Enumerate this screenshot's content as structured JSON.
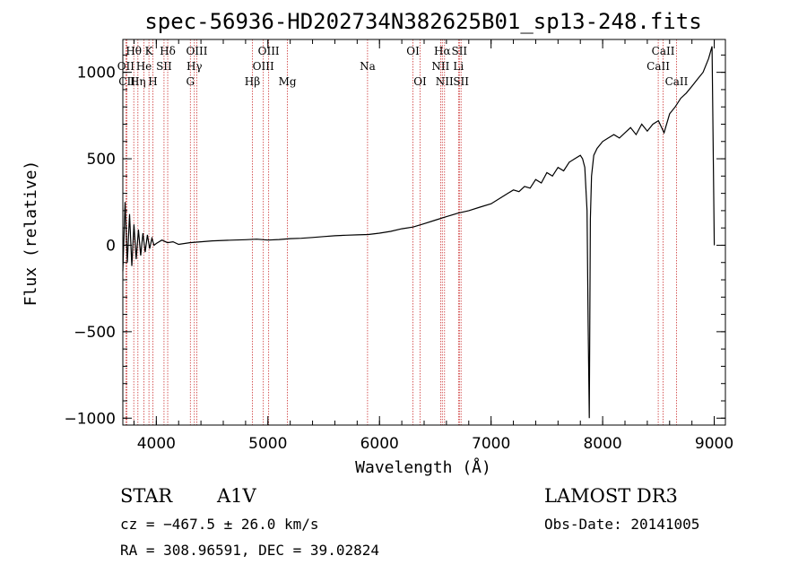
{
  "chart_data": {
    "type": "line",
    "title": "spec-56936-HD202734N382625B01_sp13-248.fits",
    "xlabel": "Wavelength (Å)",
    "ylabel": "Flux (relative)",
    "xlim": [
      3700,
      9100
    ],
    "ylim": [
      -1040,
      1190
    ],
    "xticks": [
      4000,
      5000,
      6000,
      7000,
      8000,
      9000
    ],
    "yticks": [
      -1000,
      -500,
      0,
      500,
      1000
    ],
    "xtick_labels": [
      "4000",
      "5000",
      "6000",
      "7000",
      "8000",
      "9000"
    ],
    "ytick_labels": [
      "−1000",
      "−500",
      "0",
      "500",
      "1000"
    ],
    "series": [
      {
        "name": "spectrum",
        "x": [
          3700,
          3720,
          3740,
          3760,
          3780,
          3800,
          3820,
          3840,
          3860,
          3880,
          3900,
          3920,
          3940,
          3960,
          3980,
          4000,
          4050,
          4100,
          4150,
          4200,
          4300,
          4400,
          4500,
          4600,
          4700,
          4800,
          4900,
          5000,
          5100,
          5200,
          5300,
          5400,
          5500,
          5600,
          5700,
          5800,
          5900,
          6000,
          6100,
          6200,
          6300,
          6400,
          6500,
          6600,
          6700,
          6800,
          6900,
          7000,
          7100,
          7150,
          7200,
          7250,
          7300,
          7350,
          7400,
          7450,
          7500,
          7550,
          7600,
          7650,
          7700,
          7750,
          7800,
          7820,
          7840,
          7860,
          7870,
          7880,
          7890,
          7900,
          7920,
          7950,
          8000,
          8050,
          8100,
          8150,
          8200,
          8250,
          8300,
          8350,
          8400,
          8450,
          8500,
          8550,
          8600,
          8650,
          8700,
          8750,
          8800,
          8850,
          8900,
          8950,
          8980,
          9000
        ],
        "y": [
          -150,
          250,
          -100,
          180,
          -120,
          120,
          -80,
          90,
          -60,
          70,
          -40,
          60,
          -20,
          40,
          0,
          10,
          30,
          15,
          20,
          5,
          15,
          20,
          25,
          28,
          30,
          32,
          35,
          30,
          33,
          38,
          40,
          45,
          50,
          55,
          58,
          60,
          62,
          70,
          80,
          95,
          105,
          125,
          145,
          165,
          185,
          200,
          220,
          240,
          280,
          300,
          320,
          310,
          340,
          330,
          380,
          360,
          420,
          400,
          450,
          430,
          480,
          500,
          520,
          500,
          450,
          200,
          -450,
          -1000,
          150,
          400,
          520,
          560,
          600,
          620,
          640,
          620,
          650,
          680,
          640,
          700,
          660,
          700,
          720,
          650,
          760,
          800,
          850,
          880,
          920,
          960,
          1000,
          1080,
          1150,
          0
        ]
      }
    ],
    "lines": [
      {
        "name": "Hθ",
        "x": 3798,
        "row": 0
      },
      {
        "name": "OII",
        "x": 3727,
        "row": 1
      },
      {
        "name": "CII",
        "x": 3737,
        "row": 2
      },
      {
        "name": "K",
        "x": 3934,
        "row": 0
      },
      {
        "name": "He",
        "x": 3889,
        "row": 1
      },
      {
        "name": "Hη",
        "x": 3835,
        "row": 2
      },
      {
        "name": "SII",
        "x": 4069,
        "row": 1
      },
      {
        "name": "H",
        "x": 3969,
        "row": 2
      },
      {
        "name": "Hδ",
        "x": 4102,
        "row": 0
      },
      {
        "name": "OIII",
        "x": 4363,
        "row": 0
      },
      {
        "name": "Hγ",
        "x": 4341,
        "row": 1
      },
      {
        "name": "G",
        "x": 4305,
        "row": 2
      },
      {
        "name": "OIII",
        "x": 5007,
        "row": 0
      },
      {
        "name": "OIII",
        "x": 4959,
        "row": 1
      },
      {
        "name": "Hβ",
        "x": 4861,
        "row": 2
      },
      {
        "name": "Mg",
        "x": 5175,
        "row": 2
      },
      {
        "name": "Na",
        "x": 5893,
        "row": 1
      },
      {
        "name": "OI",
        "x": 6300,
        "row": 0
      },
      {
        "name": "OI",
        "x": 6364,
        "row": 2
      },
      {
        "name": "Hα",
        "x": 6563,
        "row": 0
      },
      {
        "name": "NII",
        "x": 6548,
        "row": 1
      },
      {
        "name": "NII",
        "x": 6583,
        "row": 2
      },
      {
        "name": "SII",
        "x": 6716,
        "row": 0
      },
      {
        "name": "Li",
        "x": 6708,
        "row": 1
      },
      {
        "name": "SII",
        "x": 6731,
        "row": 2
      },
      {
        "name": "CaII",
        "x": 8542,
        "row": 0
      },
      {
        "name": "CaII",
        "x": 8498,
        "row": 1
      },
      {
        "name": "CaII",
        "x": 8662,
        "row": 2
      }
    ],
    "line_color": "#cc3333"
  },
  "info": {
    "object_class": "STAR",
    "subclass": "A1V",
    "survey": "LAMOST DR3",
    "cz": "cz = −467.5 ± 26.0 km/s",
    "obs_date": "Obs-Date: 20141005",
    "radec": "RA = 308.96591, DEC =  39.02824"
  }
}
